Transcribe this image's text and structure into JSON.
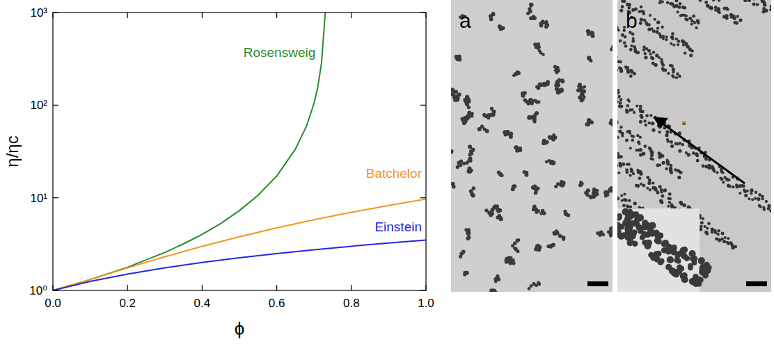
{
  "chart_data": {
    "type": "line",
    "x_label": "ϕ",
    "y_label": "η/ηc",
    "log": "y",
    "xlim": [
      0,
      1
    ],
    "ylim": [
      1,
      1000
    ],
    "xticks": [
      {
        "value": 0,
        "label": "0.0"
      },
      {
        "value": 0.2,
        "label": "0.2"
      },
      {
        "value": 0.4,
        "label": "0.4"
      },
      {
        "value": 0.6,
        "label": "0.6"
      },
      {
        "value": 0.8,
        "label": "0.8"
      },
      {
        "value": 1,
        "label": "1.0"
      }
    ],
    "yticks": [
      {
        "value": 1,
        "label": "10⁰"
      },
      {
        "value": 10,
        "label": "10¹"
      },
      {
        "value": 100,
        "label": "10²"
      },
      {
        "value": 1000,
        "label": "10³"
      }
    ],
    "series": [
      {
        "name": "Rosensweig",
        "color": "#2a8c2a",
        "x": [
          0,
          0.1,
          0.2,
          0.3,
          0.35,
          0.4,
          0.45,
          0.5,
          0.55,
          0.6,
          0.65,
          0.68,
          0.7,
          0.71,
          0.72,
          0.73
        ],
        "values": [
          1,
          1.31,
          1.78,
          2.57,
          3.18,
          4.03,
          5.29,
          7.27,
          10.65,
          17.2,
          33.5,
          59.8,
          105,
          157,
          284,
          1000
        ]
      },
      {
        "name": "Batchelor",
        "color": "#f7941d",
        "x": [
          0,
          0.1,
          0.2,
          0.3,
          0.4,
          0.5,
          0.6,
          0.7,
          0.8,
          0.9,
          1
        ],
        "values": [
          1,
          1.31,
          1.75,
          2.31,
          2.99,
          3.8,
          4.73,
          5.79,
          6.97,
          8.27,
          9.7
        ]
      },
      {
        "name": "Einstein",
        "color": "#2626e0",
        "x": [
          0,
          0.1,
          0.2,
          0.3,
          0.4,
          0.5,
          0.6,
          0.7,
          0.8,
          0.9,
          1
        ],
        "values": [
          1,
          1.25,
          1.5,
          1.75,
          2,
          2.25,
          2.5,
          2.75,
          3,
          3.25,
          3.5
        ]
      }
    ]
  },
  "images": [
    {
      "label": "a"
    },
    {
      "label": "b",
      "arrow_label": "B"
    }
  ]
}
